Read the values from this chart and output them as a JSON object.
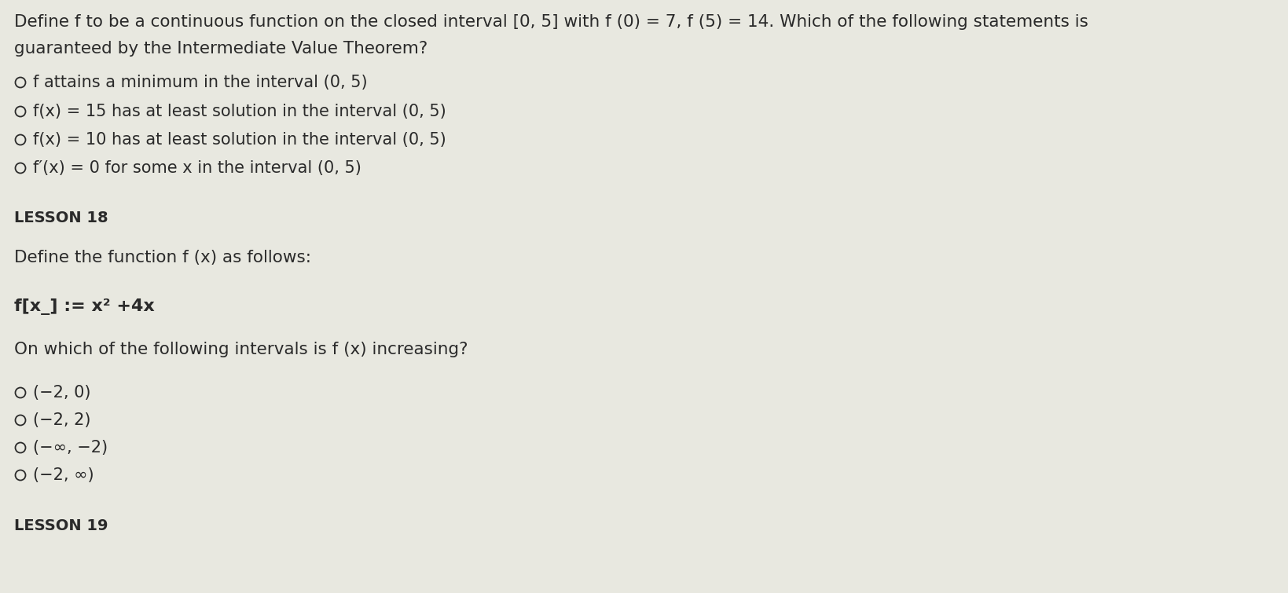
{
  "bg_color": "#e8e8e0",
  "text_color": "#2a2a2a",
  "line1": "Define f to be a continuous function on the closed interval [0, 5] with f (0) = 7, f (5) = 14. Which of the following statements is",
  "line2": "guaranteed by the Intermediate Value Theorem?",
  "options1": [
    "f attains a minimum in the interval (0, 5)",
    "f(x) = 15 has at least solution in the interval (0, 5)",
    "f(x) = 10 has at least solution in the interval (0, 5)",
    "f′(x) = 0 for some x in the interval (0, 5)"
  ],
  "lesson18": "LESSON 18",
  "intro18": "Define the function f (x) as follows:",
  "formula18": "f[x_] := x² +4x",
  "question18": "On which of the following intervals is f (x) increasing?",
  "options18": [
    "(−2, 0)",
    "(−2, 2)",
    "(−∞, −2)",
    "(−2, ∞)"
  ],
  "lesson19": "LESSON 19",
  "figsize": [
    16.39,
    7.55
  ],
  "dpi": 100
}
